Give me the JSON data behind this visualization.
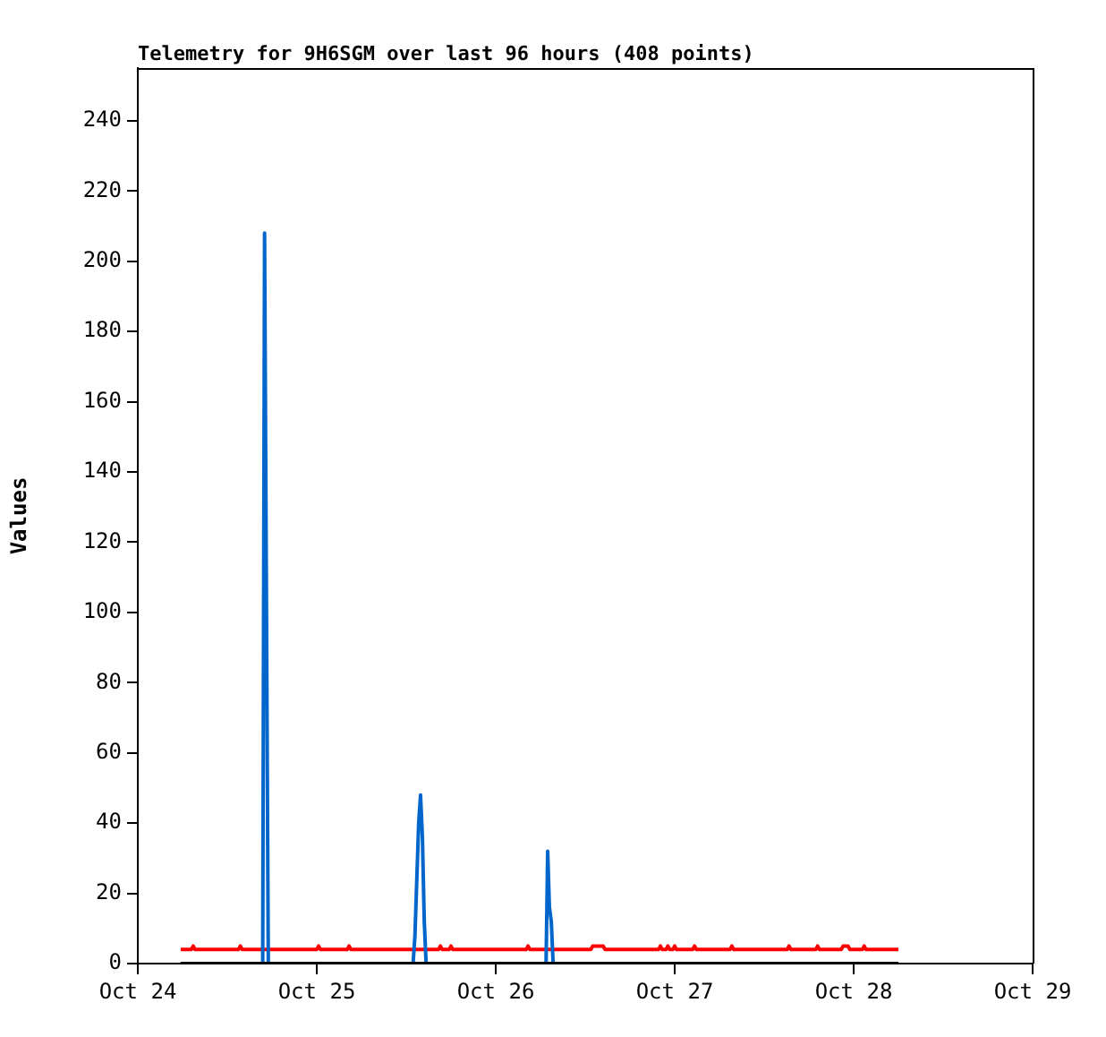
{
  "chart_data": {
    "type": "line",
    "title": "Telemetry for 9H6SGM over last 96 hours (408 points)",
    "ylabel": "Values",
    "xlim": [
      "--10-24",
      "--10-29"
    ],
    "xticks": [
      {
        "value": "--10-24",
        "label": "Oct 24"
      },
      {
        "value": "--10-25",
        "label": "Oct 25"
      },
      {
        "value": "--10-26",
        "label": "Oct 26"
      },
      {
        "value": "--10-27",
        "label": "Oct 27"
      },
      {
        "value": "--10-28",
        "label": "Oct 28"
      },
      {
        "value": "--10-29",
        "label": "Oct 29"
      }
    ],
    "ylim": [
      0,
      255
    ],
    "yticks": [
      0,
      20,
      40,
      60,
      80,
      100,
      120,
      140,
      160,
      180,
      200,
      220,
      240
    ],
    "grid": false,
    "legend": false,
    "marker": "none",
    "line_style": "solid",
    "series": [
      {
        "color": "#ff0000",
        "x": [
          "--10-24T05:45",
          "--10-24T07:10",
          "--10-24T07:26",
          "--10-24T07:40",
          "--10-24T13:30",
          "--10-24T13:45",
          "--10-24T14:00",
          "--10-25T00:00",
          "--10-25T00:15",
          "--10-25T00:30",
          "--10-25T04:05",
          "--10-25T04:20",
          "--10-25T04:35",
          "--10-25T16:20",
          "--10-25T16:35",
          "--10-25T16:50",
          "--10-25T17:45",
          "--10-25T18:00",
          "--10-25T18:15",
          "--10-26T04:05",
          "--10-26T04:20",
          "--10-26T04:35",
          "--10-26T12:45",
          "--10-26T13:00",
          "--10-26T14:25",
          "--10-26T14:40",
          "--10-26T21:50",
          "--10-26T22:05",
          "--10-26T22:20",
          "--10-26T22:50",
          "--10-26T23:05",
          "--10-26T23:20",
          "--10-26T23:45",
          "--10-27T00:00",
          "--10-27T00:15",
          "--10-27T02:25",
          "--10-27T02:40",
          "--10-27T02:55",
          "--10-27T07:25",
          "--10-27T07:40",
          "--10-27T07:55",
          "--10-27T15:05",
          "--10-27T15:20",
          "--10-27T15:35",
          "--10-27T18:55",
          "--10-27T19:10",
          "--10-27T19:25",
          "--10-27T22:20",
          "--10-27T22:35",
          "--10-27T23:15",
          "--10-27T23:30",
          "--10-28T01:10",
          "--10-28T01:25",
          "--10-28T01:40",
          "--10-28T06:00"
        ],
        "values": [
          4,
          4,
          5,
          4,
          4,
          5,
          4,
          4,
          5,
          4,
          4,
          5,
          4,
          4,
          5,
          4,
          4,
          5,
          4,
          4,
          5,
          4,
          4,
          5,
          5,
          4,
          4,
          5,
          4,
          4,
          5,
          4,
          4,
          5,
          4,
          4,
          5,
          4,
          4,
          5,
          4,
          4,
          5,
          4,
          4,
          5,
          4,
          4,
          5,
          5,
          4,
          4,
          5,
          4,
          4
        ]
      },
      {
        "color": "#0066cc",
        "x": [
          "--10-24T05:45",
          "--10-24T16:45",
          "--10-24T17:00",
          "--10-24T17:15",
          "--10-24T17:30",
          "--10-25T12:55",
          "--10-25T13:10",
          "--10-25T13:25",
          "--10-25T13:40",
          "--10-25T13:55",
          "--10-25T14:10",
          "--10-25T14:25",
          "--10-25T14:40",
          "--10-26T06:45",
          "--10-26T06:58",
          "--10-26T07:12",
          "--10-26T07:27",
          "--10-26T07:42",
          "--10-28T06:00"
        ],
        "values": [
          0,
          0,
          208,
          104,
          0,
          0,
          8,
          24,
          40,
          48,
          36,
          12,
          0,
          0,
          32,
          16,
          12,
          0,
          0
        ]
      },
      {
        "color": "#000000",
        "x": [
          "--10-24T05:45",
          "--10-28T06:00"
        ],
        "values": [
          0,
          0
        ]
      }
    ]
  }
}
